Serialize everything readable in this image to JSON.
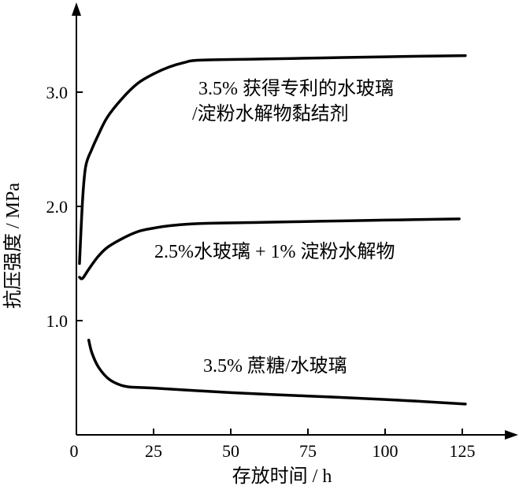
{
  "chart_data": {
    "type": "line",
    "xlabel": "存放时间 / h",
    "ylabel": "抗压强度 / MPa",
    "xlim": [
      0,
      140
    ],
    "ylim": [
      0,
      4.0
    ],
    "x_ticks": [
      {
        "value": 0,
        "label": "0"
      },
      {
        "value": 25,
        "label": "25"
      },
      {
        "value": 50,
        "label": "50"
      },
      {
        "value": 75,
        "label": "75"
      },
      {
        "value": 100,
        "label": "100"
      },
      {
        "value": 125,
        "label": "125"
      }
    ],
    "y_ticks": [
      {
        "value": 1.0,
        "label": "1.0"
      },
      {
        "value": 2.0,
        "label": "2.0"
      },
      {
        "value": 3.0,
        "label": "3.0"
      }
    ],
    "series": [
      {
        "name": "3.5% 获得专利的水玻璃 /淀粉水解物黏结剂",
        "label_lines": [
          "3.5% 获得专利的水玻璃",
          "/淀粉水解物黏结剂"
        ],
        "points": [
          [
            1,
            1.5
          ],
          [
            2,
            2.05
          ],
          [
            3,
            2.35
          ],
          [
            5,
            2.5
          ],
          [
            7,
            2.62
          ],
          [
            10,
            2.78
          ],
          [
            15,
            2.95
          ],
          [
            20,
            3.08
          ],
          [
            25,
            3.16
          ],
          [
            30,
            3.22
          ],
          [
            35,
            3.26
          ],
          [
            40,
            3.28
          ],
          [
            60,
            3.29
          ],
          [
            80,
            3.3
          ],
          [
            100,
            3.31
          ],
          [
            126,
            3.32
          ]
        ]
      },
      {
        "name": "2.5%水玻璃 + 1% 淀粉水解物",
        "label_lines": [
          "2.5%水玻璃 + 1% 淀粉水解物"
        ],
        "points": [
          [
            1,
            1.38
          ],
          [
            2,
            1.37
          ],
          [
            4,
            1.45
          ],
          [
            7,
            1.56
          ],
          [
            10,
            1.64
          ],
          [
            15,
            1.72
          ],
          [
            20,
            1.78
          ],
          [
            25,
            1.81
          ],
          [
            30,
            1.83
          ],
          [
            40,
            1.85
          ],
          [
            60,
            1.86
          ],
          [
            80,
            1.87
          ],
          [
            100,
            1.88
          ],
          [
            124,
            1.89
          ]
        ]
      },
      {
        "name": "3.5% 蔗糖/水玻璃",
        "label_lines": [
          "3.5% 蔗糖/水玻璃"
        ],
        "points": [
          [
            4,
            0.83
          ],
          [
            5,
            0.72
          ],
          [
            7,
            0.6
          ],
          [
            10,
            0.5
          ],
          [
            13,
            0.45
          ],
          [
            17,
            0.42
          ],
          [
            25,
            0.41
          ],
          [
            50,
            0.37
          ],
          [
            75,
            0.34
          ],
          [
            100,
            0.31
          ],
          [
            126,
            0.27
          ]
        ]
      }
    ]
  }
}
